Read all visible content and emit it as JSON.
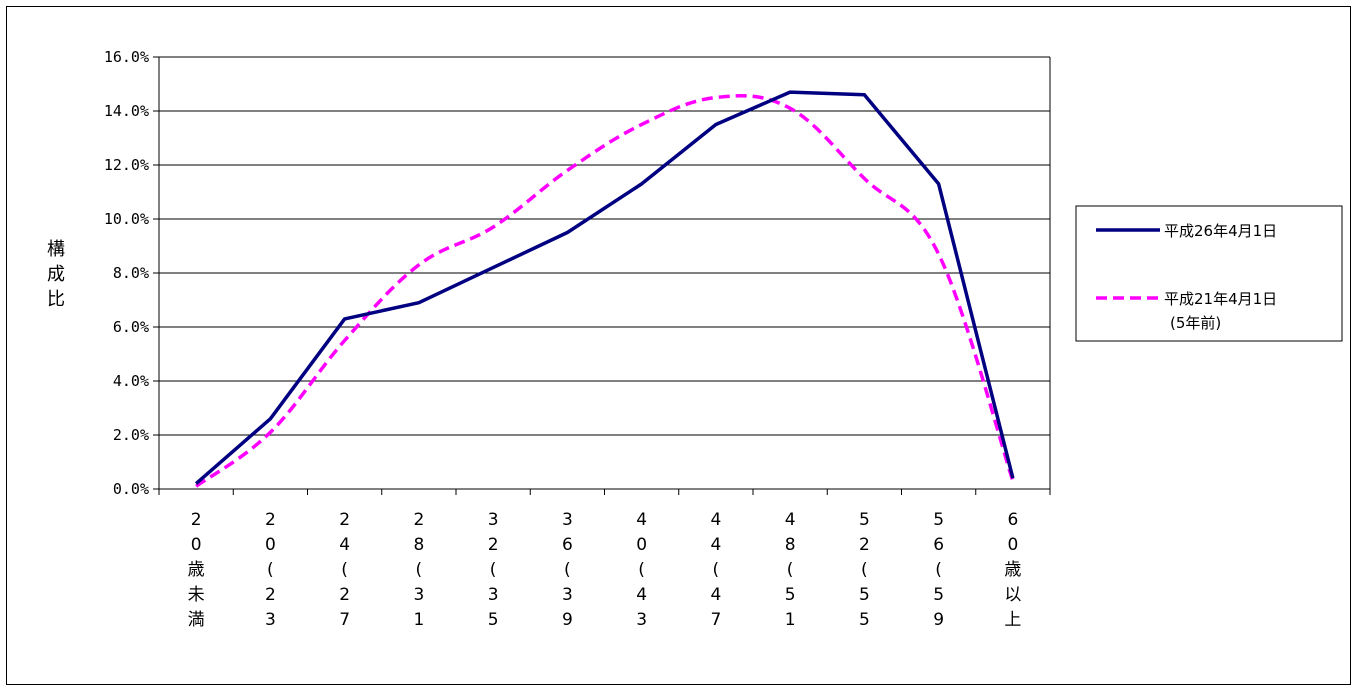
{
  "chart_data": {
    "type": "line",
    "ylabel": "構成比",
    "xlabel": "",
    "ylim": [
      0,
      0.16
    ],
    "ytick_labels": [
      "0.0%",
      "2.0%",
      "4.0%",
      "6.0%",
      "8.0%",
      "10.0%",
      "12.0%",
      "14.0%",
      "16.0%"
    ],
    "ytick_values": [
      0,
      0.02,
      0.04,
      0.06,
      0.08,
      0.1,
      0.12,
      0.14,
      0.16
    ],
    "grid": true,
    "legend_position": "right",
    "categories": [
      [
        "2",
        "0",
        "歳",
        "未",
        "満"
      ],
      [
        "2",
        "0",
        "∫",
        "2",
        "3"
      ],
      [
        "2",
        "4",
        "∫",
        "2",
        "7"
      ],
      [
        "2",
        "8",
        "∫",
        "3",
        "1"
      ],
      [
        "3",
        "2",
        "∫",
        "3",
        "5"
      ],
      [
        "3",
        "6",
        "∫",
        "3",
        "9"
      ],
      [
        "4",
        "0",
        "∫",
        "4",
        "3"
      ],
      [
        "4",
        "4",
        "∫",
        "4",
        "7"
      ],
      [
        "4",
        "8",
        "∫",
        "5",
        "1"
      ],
      [
        "5",
        "2",
        "∫",
        "5",
        "5"
      ],
      [
        "5",
        "6",
        "∫",
        "5",
        "9"
      ],
      [
        "6",
        "0",
        "歳",
        "以",
        "上"
      ]
    ],
    "series": [
      {
        "name": "平成26年4月1日",
        "color": "#000080",
        "style": "solid",
        "values": [
          0.002,
          0.026,
          0.063,
          0.069,
          0.082,
          0.095,
          0.113,
          0.135,
          0.147,
          0.146,
          0.113,
          0.004
        ]
      },
      {
        "name": "平成21年4月1日\n(5年前)",
        "name_lines": [
          "平成21年4月1日",
          "(5年前)"
        ],
        "color": "#FF00FF",
        "style": "dashed",
        "values": [
          0.001,
          0.021,
          0.055,
          0.083,
          0.097,
          0.118,
          0.135,
          0.145,
          0.141,
          0.115,
          0.087,
          0.003
        ]
      }
    ]
  }
}
